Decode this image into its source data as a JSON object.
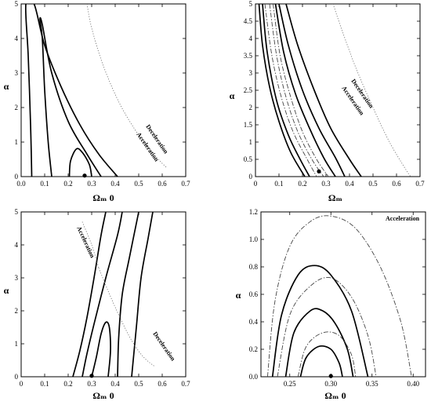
{
  "chart_data": [
    {
      "type": "line",
      "panel": "top-left",
      "xlabel": "Ωₘ 0",
      "ylabel": "α",
      "xlim": [
        0,
        0.7
      ],
      "ylim": [
        0,
        5
      ],
      "xticks": [
        "0.0",
        "0.1",
        "0.2",
        "0.3",
        "0.4",
        "0.5",
        "0.6",
        "0.7"
      ],
      "yticks": [
        "0",
        "1",
        "2",
        "3",
        "4",
        "5"
      ],
      "grid": false,
      "series": [
        {
          "style": "solid-contour",
          "points": [
            [
              0.205,
              0
            ],
            [
              0.21,
              0.45
            ],
            [
              0.235,
              0.8
            ],
            [
              0.26,
              0.7
            ],
            [
              0.29,
              0.35
            ],
            [
              0.3,
              0
            ]
          ]
        },
        {
          "style": "solid-contour",
          "points": [
            [
              0.13,
              0
            ],
            [
              0.115,
              1.0
            ],
            [
              0.1,
              2.5
            ],
            [
              0.09,
              4.0
            ],
            [
              0.08,
              4.55
            ],
            [
              0.09,
              4.4
            ],
            [
              0.13,
              3.0
            ],
            [
              0.2,
              1.6
            ],
            [
              0.28,
              0.65
            ],
            [
              0.34,
              0
            ]
          ]
        },
        {
          "style": "solid-contour",
          "points": [
            [
              0.045,
              0
            ],
            [
              0.04,
              1.5
            ],
            [
              0.03,
              3.5
            ],
            [
              0.02,
              5
            ],
            [
              0.055,
              5
            ],
            [
              0.1,
              3.8
            ],
            [
              0.17,
              2.6
            ],
            [
              0.25,
              1.5
            ],
            [
              0.33,
              0.65
            ],
            [
              0.41,
              0
            ]
          ]
        },
        {
          "style": "dotted-boundary",
          "points": [
            [
              0.28,
              5
            ],
            [
              0.3,
              4.3
            ],
            [
              0.35,
              3.2
            ],
            [
              0.42,
              2.1
            ],
            [
              0.5,
              1.2
            ],
            [
              0.57,
              0.6
            ],
            [
              0.62,
              0.25
            ]
          ]
        },
        {
          "style": "best-fit-point",
          "points": [
            [
              0.27,
              0.03
            ]
          ]
        }
      ],
      "annotations": [
        "Deceleration",
        "Acceleration"
      ]
    },
    {
      "type": "line",
      "panel": "top-right",
      "xlabel": "Ωₘ",
      "ylabel": "α",
      "xlim": [
        0,
        0.7
      ],
      "ylim": [
        0,
        5
      ],
      "xticks": [
        "0",
        "0.1",
        "0.2",
        "0.3",
        "0.4",
        "0.5",
        "0.6",
        "0.7"
      ],
      "yticks": [
        "0",
        "0.5",
        "1",
        "1.5",
        "2",
        "2.5",
        "3",
        "3.5",
        "4",
        "4.5",
        "5"
      ],
      "grid": false,
      "series": [
        {
          "style": "solid-contour",
          "points": [
            [
              0.03,
              5
            ],
            [
              0.05,
              3.6
            ],
            [
              0.09,
              2.2
            ],
            [
              0.14,
              1.2
            ],
            [
              0.19,
              0.5
            ],
            [
              0.23,
              0
            ]
          ]
        },
        {
          "style": "solid-contour",
          "points": [
            [
              0.015,
              5
            ],
            [
              0.03,
              3.8
            ],
            [
              0.06,
              2.6
            ],
            [
              0.1,
              1.6
            ],
            [
              0.15,
              0.7
            ],
            [
              0.21,
              0
            ]
          ]
        },
        {
          "style": "solid-contour",
          "points": [
            [
              0.085,
              5
            ],
            [
              0.12,
              3.6
            ],
            [
              0.17,
              2.4
            ],
            [
              0.23,
              1.4
            ],
            [
              0.29,
              0.55
            ],
            [
              0.34,
              0
            ]
          ]
        },
        {
          "style": "solid-contour",
          "points": [
            [
              0.1,
              5
            ],
            [
              0.14,
              3.8
            ],
            [
              0.2,
              2.5
            ],
            [
              0.27,
              1.4
            ],
            [
              0.34,
              0.55
            ],
            [
              0.38,
              0
            ]
          ]
        },
        {
          "style": "solid-contour",
          "points": [
            [
              0.13,
              5
            ],
            [
              0.18,
              3.8
            ],
            [
              0.25,
              2.5
            ],
            [
              0.32,
              1.4
            ],
            [
              0.4,
              0.5
            ],
            [
              0.45,
              0
            ]
          ]
        },
        {
          "style": "dashdot-contour",
          "points": [
            [
              0.04,
              5
            ],
            [
              0.07,
              3.5
            ],
            [
              0.11,
              2.3
            ],
            [
              0.16,
              1.3
            ],
            [
              0.22,
              0.5
            ],
            [
              0.26,
              0
            ]
          ]
        },
        {
          "style": "dashdot-contour",
          "points": [
            [
              0.06,
              5
            ],
            [
              0.09,
              3.5
            ],
            [
              0.13,
              2.3
            ],
            [
              0.18,
              1.3
            ],
            [
              0.24,
              0.5
            ],
            [
              0.29,
              0
            ]
          ]
        },
        {
          "style": "dashdot-contour",
          "points": [
            [
              0.075,
              5
            ],
            [
              0.105,
              3.5
            ],
            [
              0.15,
              2.3
            ],
            [
              0.2,
              1.3
            ],
            [
              0.26,
              0.5
            ],
            [
              0.31,
              0
            ]
          ]
        },
        {
          "style": "dotted-boundary",
          "points": [
            [
              0.33,
              5
            ],
            [
              0.37,
              4.2
            ],
            [
              0.43,
              3.1
            ],
            [
              0.5,
              2.0
            ],
            [
              0.57,
              1.0
            ],
            [
              0.64,
              0.2
            ],
            [
              0.66,
              0
            ]
          ]
        },
        {
          "style": "best-fit-point",
          "points": [
            [
              0.27,
              0.15
            ]
          ]
        }
      ],
      "annotations": [
        "Deceleration",
        "Acceleration"
      ]
    },
    {
      "type": "line",
      "panel": "bottom-left",
      "xlabel": "Ωₘ 0",
      "ylabel": "α",
      "xlim": [
        0,
        0.7
      ],
      "ylim": [
        0,
        5
      ],
      "xticks": [
        "0",
        "0.1",
        "0.2",
        "0.3",
        "0.4",
        "0.5",
        "0.6",
        "0.7"
      ],
      "yticks": [
        "0",
        "1",
        "2",
        "3",
        "4",
        "5"
      ],
      "grid": false,
      "series": [
        {
          "style": "solid-contour",
          "points": [
            [
              0.3,
              0
            ],
            [
              0.32,
              0.6
            ],
            [
              0.34,
              1.3
            ],
            [
              0.36,
              1.65
            ],
            [
              0.375,
              1.5
            ],
            [
              0.38,
              0.8
            ],
            [
              0.37,
              0
            ]
          ]
        },
        {
          "style": "solid-contour",
          "points": [
            [
              0.26,
              0
            ],
            [
              0.28,
              0.7
            ],
            [
              0.31,
              1.6
            ],
            [
              0.36,
              3.0
            ],
            [
              0.41,
              4.3
            ],
            [
              0.43,
              5
            ]
          ]
        },
        {
          "style": "solid-contour",
          "points": [
            [
              0.22,
              0
            ],
            [
              0.25,
              0.8
            ],
            [
              0.28,
              1.8
            ],
            [
              0.31,
              3.0
            ],
            [
              0.34,
              4.3
            ],
            [
              0.36,
              5
            ]
          ]
        },
        {
          "style": "solid-contour",
          "points": [
            [
              0.41,
              0
            ],
            [
              0.415,
              1.2
            ],
            [
              0.43,
              2.5
            ],
            [
              0.46,
              3.6
            ],
            [
              0.5,
              5
            ]
          ]
        },
        {
          "style": "solid-contour",
          "points": [
            [
              0.47,
              0
            ],
            [
              0.49,
              1.5
            ],
            [
              0.51,
              3.0
            ],
            [
              0.54,
              4.2
            ],
            [
              0.56,
              5
            ]
          ]
        },
        {
          "style": "dotted-boundary",
          "points": [
            [
              0.33,
              3.3
            ],
            [
              0.37,
              2.6
            ],
            [
              0.42,
              1.8
            ],
            [
              0.47,
              1.1
            ],
            [
              0.52,
              0.6
            ],
            [
              0.57,
              0.3
            ]
          ]
        },
        {
          "style": "dotted-boundary",
          "points": [
            [
              0.26,
              4.7
            ],
            [
              0.3,
              4.0
            ],
            [
              0.33,
              3.3
            ]
          ]
        },
        {
          "style": "best-fit-point",
          "points": [
            [
              0.3,
              0.03
            ]
          ]
        }
      ],
      "annotations": [
        "Acceleration",
        "Deceleration"
      ]
    },
    {
      "type": "line",
      "panel": "bottom-right",
      "xlabel": "Ωₘ 0",
      "ylabel": "α",
      "xlim": [
        0.215,
        0.415
      ],
      "ylim": [
        0,
        1.2
      ],
      "xticks": [
        "0.25",
        "0.30",
        "0.35",
        "0.40"
      ],
      "yticks": [
        "0.0",
        "0.2",
        "0.4",
        "0.6",
        "0.8",
        "1.0",
        "1.2"
      ],
      "grid": false,
      "series": [
        {
          "style": "solid-contour",
          "points": [
            [
              0.263,
              0
            ],
            [
              0.27,
              0.14
            ],
            [
              0.285,
              0.22
            ],
            [
              0.3,
              0.2
            ],
            [
              0.31,
              0.1
            ],
            [
              0.314,
              0
            ]
          ]
        },
        {
          "style": "solid-contour",
          "points": [
            [
              0.245,
              0
            ],
            [
              0.255,
              0.32
            ],
            [
              0.275,
              0.48
            ],
            [
              0.29,
              0.48
            ],
            [
              0.305,
              0.39
            ],
            [
              0.32,
              0.2
            ],
            [
              0.327,
              0
            ]
          ]
        },
        {
          "style": "solid-contour",
          "points": [
            [
              0.229,
              0
            ],
            [
              0.24,
              0.45
            ],
            [
              0.26,
              0.74
            ],
            [
              0.28,
              0.81
            ],
            [
              0.3,
              0.74
            ],
            [
              0.325,
              0.48
            ],
            [
              0.345,
              0
            ]
          ]
        },
        {
          "style": "dashdot-contour",
          "points": [
            [
              0.26,
              0
            ],
            [
              0.27,
              0.22
            ],
            [
              0.29,
              0.32
            ],
            [
              0.31,
              0.3
            ],
            [
              0.325,
              0.16
            ],
            [
              0.33,
              0
            ]
          ]
        },
        {
          "style": "dashdot-contour",
          "points": [
            [
              0.235,
              0
            ],
            [
              0.25,
              0.45
            ],
            [
              0.275,
              0.66
            ],
            [
              0.3,
              0.72
            ],
            [
              0.325,
              0.58
            ],
            [
              0.345,
              0.3
            ],
            [
              0.355,
              0
            ]
          ]
        },
        {
          "style": "dashdot-contour",
          "points": [
            [
              0.223,
              0
            ],
            [
              0.232,
              0.55
            ],
            [
              0.25,
              0.95
            ],
            [
              0.275,
              1.13
            ],
            [
              0.3,
              1.17
            ],
            [
              0.33,
              1.08
            ],
            [
              0.36,
              0.8
            ],
            [
              0.385,
              0.4
            ],
            [
              0.398,
              0
            ]
          ]
        },
        {
          "style": "best-fit-point",
          "points": [
            [
              0.3,
              0.005
            ]
          ]
        }
      ],
      "annotations": [
        "Acceleration"
      ]
    }
  ]
}
